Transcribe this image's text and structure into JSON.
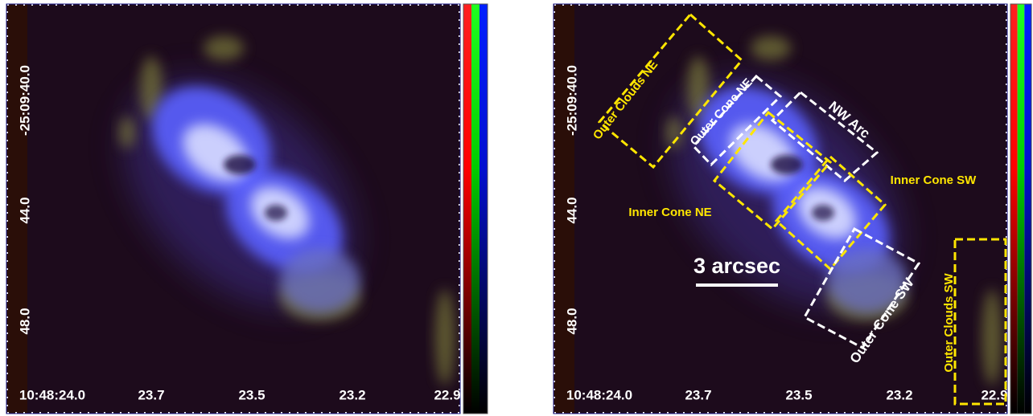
{
  "axes": {
    "x_labels": [
      "10:48:24.0",
      "23.7",
      "23.5",
      "23.2",
      "22.9"
    ],
    "y_labels": [
      "-25:09:40.0",
      "44.0",
      "48.0"
    ]
  },
  "scale_bar": {
    "label": "3 arcsec"
  },
  "regions": [
    {
      "label": "Outer Clouds NE",
      "color": "#ffe600"
    },
    {
      "label": "Outer Cone NE",
      "color": "#ffffff"
    },
    {
      "label": "NW Arc",
      "color": "#ffffff"
    },
    {
      "label": "Inner Cone NE",
      "color": "#ffe600"
    },
    {
      "label": "Inner Cone SW",
      "color": "#ffe600"
    },
    {
      "label": "Outer Cone SW",
      "color": "#ffffff"
    },
    {
      "label": "Outer Clouds SW",
      "color": "#ffe600"
    }
  ]
}
